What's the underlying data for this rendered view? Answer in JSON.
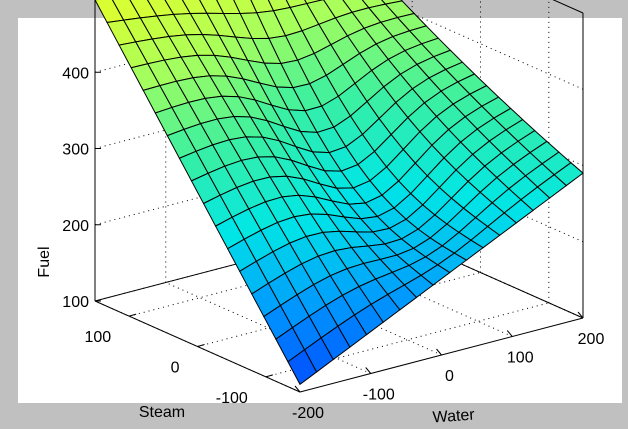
{
  "chart_data": {
    "type": "surface",
    "title": "",
    "xlabel": "Water",
    "ylabel": "Steam",
    "zlabel": "Fuel",
    "xlim": [
      -200,
      200
    ],
    "ylim": [
      -150,
      150
    ],
    "zlim": [
      100,
      500
    ],
    "x_ticks": [
      "-200",
      "-100",
      "0",
      "100",
      "200"
    ],
    "y_ticks": [
      "-100",
      "0",
      "100"
    ],
    "z_ticks": [
      "100",
      "200",
      "300",
      "400"
    ],
    "grid": true,
    "colormap": "jet-like (blue to yellow)",
    "corner_values": {
      "water_-200_steam_-150": 110,
      "water_200_steam_-150": 290,
      "water_200_steam_150": 430,
      "water_-200_steam_150": 495
    }
  }
}
